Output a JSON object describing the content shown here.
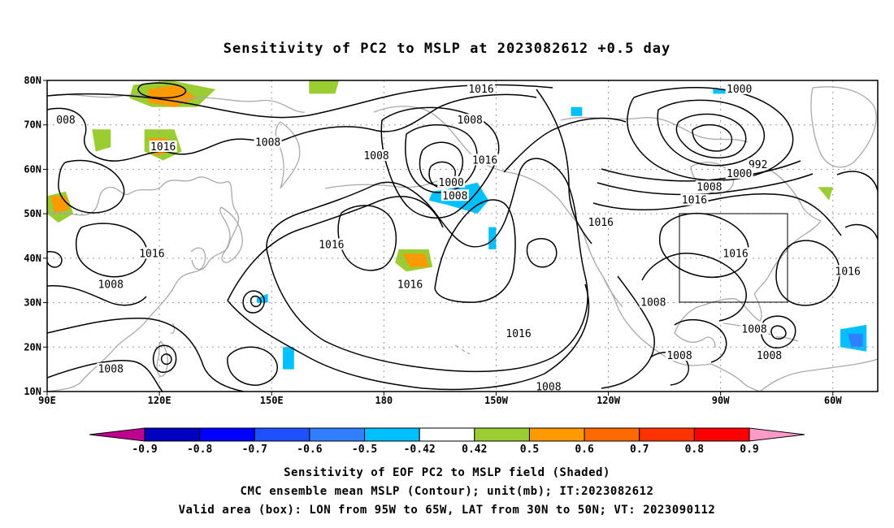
{
  "title": "Sensitivity of PC2 to MSLP at 2023082612 +0.5 day",
  "map": {
    "lat_labels": [
      "80N",
      "70N",
      "60N",
      "50N",
      "40N",
      "30N",
      "20N",
      "10N"
    ],
    "lon_labels": [
      "90E",
      "120E",
      "150E",
      "180",
      "150W",
      "120W",
      "90W",
      "60W"
    ],
    "lon_range": [
      90,
      312
    ],
    "lat_range": [
      10,
      80
    ],
    "grid": "dotted",
    "coastline_color": "#a9a9a9",
    "contour_color": "#000000",
    "valid_box": {
      "lon": [
        265,
        295
      ],
      "lat": [
        30,
        50
      ]
    },
    "contour_labels": [
      {
        "text": "008",
        "lon": 95,
        "lat": 71
      },
      {
        "text": "1016",
        "lon": 121,
        "lat": 65
      },
      {
        "text": "1008",
        "lon": 149,
        "lat": 66
      },
      {
        "text": "1008",
        "lon": 178,
        "lat": 63
      },
      {
        "text": "1016",
        "lon": 206,
        "lat": 78
      },
      {
        "text": "1008",
        "lon": 203,
        "lat": 71
      },
      {
        "text": "1016",
        "lon": 207,
        "lat": 62
      },
      {
        "text": "1000",
        "lon": 198,
        "lat": 57
      },
      {
        "text": "1008",
        "lon": 199,
        "lat": 54
      },
      {
        "text": "1000",
        "lon": 275,
        "lat": 78
      },
      {
        "text": "992",
        "lon": 280,
        "lat": 61
      },
      {
        "text": "1000",
        "lon": 275,
        "lat": 59
      },
      {
        "text": "1008",
        "lon": 267,
        "lat": 56
      },
      {
        "text": "1016",
        "lon": 263,
        "lat": 53
      },
      {
        "text": "1016",
        "lon": 238,
        "lat": 48
      },
      {
        "text": "1016",
        "lon": 118,
        "lat": 41
      },
      {
        "text": "1016",
        "lon": 166,
        "lat": 43
      },
      {
        "text": "1008",
        "lon": 107,
        "lat": 34
      },
      {
        "text": "1016",
        "lon": 187,
        "lat": 34
      },
      {
        "text": "1016",
        "lon": 274,
        "lat": 41
      },
      {
        "text": "1016",
        "lon": 304,
        "lat": 37
      },
      {
        "text": "1008",
        "lon": 252,
        "lat": 30
      },
      {
        "text": "1016",
        "lon": 216,
        "lat": 23
      },
      {
        "text": "1008",
        "lon": 279,
        "lat": 24
      },
      {
        "text": "1008",
        "lon": 283,
        "lat": 18
      },
      {
        "text": "1008",
        "lon": 259,
        "lat": 18
      },
      {
        "text": "1008",
        "lon": 107,
        "lat": 15
      },
      {
        "text": "1008",
        "lon": 224,
        "lat": 11
      }
    ],
    "shaded_areas": [
      {
        "bin": "0.5",
        "color": "#9acd32",
        "points": [
          [
            113,
            79
          ],
          [
            123,
            80
          ],
          [
            135,
            78
          ],
          [
            130,
            74
          ],
          [
            118,
            74
          ],
          [
            112,
            76
          ]
        ]
      },
      {
        "bin": "0.6",
        "color": "#ff9900",
        "points": [
          [
            117,
            78
          ],
          [
            125,
            79
          ],
          [
            130,
            76
          ],
          [
            124,
            74
          ],
          [
            117,
            75
          ]
        ]
      },
      {
        "bin": "0.5",
        "color": "#9acd32",
        "points": [
          [
            116,
            69
          ],
          [
            124,
            69
          ],
          [
            126,
            64
          ],
          [
            121,
            62
          ],
          [
            116,
            64
          ]
        ]
      },
      {
        "bin": "0.6",
        "color": "#ff9900",
        "points": [
          [
            117,
            67
          ],
          [
            122,
            67
          ],
          [
            123,
            64
          ],
          [
            119,
            63
          ]
        ]
      },
      {
        "bin": "0.5",
        "color": "#9acd32",
        "points": [
          [
            90,
            54
          ],
          [
            95,
            55
          ],
          [
            97,
            50
          ],
          [
            93,
            48
          ],
          [
            90,
            50
          ]
        ]
      },
      {
        "bin": "0.6",
        "color": "#ff9900",
        "points": [
          [
            91,
            54
          ],
          [
            95,
            54
          ],
          [
            96,
            51
          ],
          [
            92,
            50
          ]
        ]
      },
      {
        "bin": "0.5",
        "color": "#9acd32",
        "points": [
          [
            102,
            69
          ],
          [
            107,
            69
          ],
          [
            107,
            65
          ],
          [
            103,
            64
          ]
        ]
      },
      {
        "bin": "0.5",
        "color": "#9acd32",
        "points": [
          [
            160,
            80
          ],
          [
            168,
            80
          ],
          [
            167,
            77
          ],
          [
            160,
            77
          ]
        ]
      },
      {
        "bin": "0.5",
        "color": "#9acd32",
        "points": [
          [
            184,
            42
          ],
          [
            192,
            42
          ],
          [
            193,
            38
          ],
          [
            186,
            37
          ],
          [
            183,
            39
          ]
        ]
      },
      {
        "bin": "0.6",
        "color": "#ff9900",
        "points": [
          [
            185,
            41
          ],
          [
            191,
            41
          ],
          [
            192,
            38
          ],
          [
            187,
            38
          ]
        ]
      },
      {
        "bin": "0.5",
        "color": "#9acd32",
        "points": [
          [
            296,
            56
          ],
          [
            300,
            56
          ],
          [
            299,
            53
          ]
        ]
      },
      {
        "bin": "-0.5",
        "color": "#00c0ff",
        "points": [
          [
            193,
            55
          ],
          [
            200,
            56
          ],
          [
            205,
            57
          ],
          [
            208,
            53
          ],
          [
            205,
            50
          ],
          [
            197,
            52
          ],
          [
            192,
            53
          ]
        ]
      },
      {
        "bin": "-0.6",
        "color": "#2f7fff",
        "points": [
          [
            196,
            55
          ],
          [
            200,
            56
          ],
          [
            201,
            54
          ],
          [
            197,
            54
          ]
        ]
      },
      {
        "bin": "-0.5",
        "color": "#00c0ff",
        "points": [
          [
            208,
            47
          ],
          [
            210,
            47
          ],
          [
            210,
            42
          ],
          [
            208,
            42
          ]
        ]
      },
      {
        "bin": "-0.5",
        "color": "#00c0ff",
        "points": [
          [
            302,
            24
          ],
          [
            309,
            25
          ],
          [
            309,
            19
          ],
          [
            302,
            20
          ]
        ]
      },
      {
        "bin": "-0.6",
        "color": "#2f7fff",
        "points": [
          [
            304,
            23
          ],
          [
            308,
            23
          ],
          [
            308,
            20
          ],
          [
            305,
            20
          ]
        ]
      },
      {
        "bin": "-0.5",
        "color": "#00c0ff",
        "points": [
          [
            146,
            31
          ],
          [
            149,
            32
          ],
          [
            149,
            30
          ],
          [
            146,
            30
          ]
        ]
      },
      {
        "bin": "-0.5",
        "color": "#00c0ff",
        "points": [
          [
            153,
            20
          ],
          [
            156,
            20
          ],
          [
            156,
            15
          ],
          [
            153,
            15
          ]
        ]
      },
      {
        "bin": "-0.5",
        "color": "#00c0ff",
        "points": [
          [
            230,
            74
          ],
          [
            233,
            74
          ],
          [
            233,
            72
          ],
          [
            230,
            72
          ]
        ]
      },
      {
        "bin": "-0.5",
        "color": "#00c0ff",
        "points": [
          [
            268,
            78
          ],
          [
            273,
            78
          ],
          [
            273,
            77
          ],
          [
            268,
            77
          ]
        ]
      }
    ]
  },
  "colorbar": {
    "labels": [
      "-0.9",
      "-0.8",
      "-0.7",
      "-0.6",
      "-0.5",
      "-0.42",
      "0.42",
      "0.5",
      "0.6",
      "0.7",
      "0.8",
      "0.9"
    ],
    "colors": [
      "#0000c0",
      "#0000ff",
      "#1f50ff",
      "#2f7fff",
      "#00c0ff",
      "#ffffff",
      "#9acd32",
      "#ff9900",
      "#ff6a00",
      "#ff3300",
      "#ff0000"
    ],
    "under_color": "#c0008f",
    "over_color": "#ff99c8"
  },
  "caption": {
    "line1": "Sensitivity of EOF PC2 to MSLP field (Shaded)",
    "line2": "CMC ensemble mean MSLP (Contour); unit(mb); IT:2023082612",
    "line3": "Valid area (box): LON from 95W to 65W, LAT from 30N to 50N; VT: 2023090112"
  }
}
